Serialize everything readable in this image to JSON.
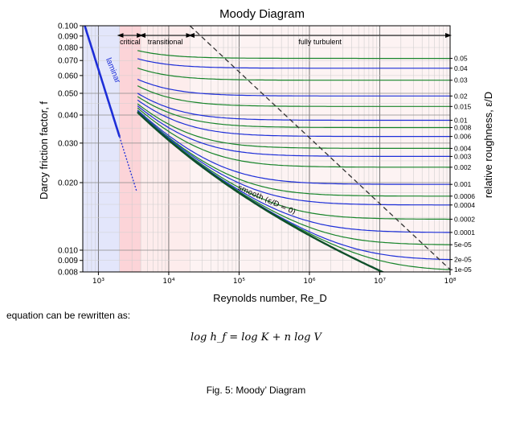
{
  "chart_data": {
    "type": "line",
    "title": "Moody Diagram",
    "xlabel": "Reynolds number, Re_D",
    "ylabel": "Darcy friction factor, f",
    "y2label": "relative roughness, ε/D",
    "x_scale": "log",
    "y_scale": "log",
    "xlim": [
      600,
      100000000
    ],
    "ylim": [
      0.008,
      0.1
    ],
    "x_ticks": [
      {
        "value": 1000,
        "label": "10³"
      },
      {
        "value": 10000,
        "label": "10⁴"
      },
      {
        "value": 100000,
        "label": "10⁵"
      },
      {
        "value": 1000000,
        "label": "10⁶"
      },
      {
        "value": 10000000,
        "label": "10⁷"
      },
      {
        "value": 100000000,
        "label": "10⁸"
      }
    ],
    "y_ticks": [
      {
        "value": 0.1,
        "label": "0.100"
      },
      {
        "value": 0.09,
        "label": "0.090"
      },
      {
        "value": 0.08,
        "label": "0.080"
      },
      {
        "value": 0.07,
        "label": "0.070"
      },
      {
        "value": 0.06,
        "label": "0.060"
      },
      {
        "value": 0.05,
        "label": "0.050"
      },
      {
        "value": 0.04,
        "label": "0.040"
      },
      {
        "value": 0.03,
        "label": "0.030"
      },
      {
        "value": 0.02,
        "label": "0.020"
      },
      {
        "value": 0.01,
        "label": "0.010"
      },
      {
        "value": 0.009,
        "label": "0.009"
      },
      {
        "value": 0.008,
        "label": "0.008"
      }
    ],
    "regions": [
      {
        "name": "laminar",
        "x": [
          600,
          2000
        ],
        "color": "#e3e6fb"
      },
      {
        "name": "critical",
        "x": [
          2000,
          4000
        ],
        "color": "#fcd4d8"
      },
      {
        "name": "transitional",
        "x": [
          4000,
          20000
        ],
        "color": "#fdecec"
      },
      {
        "name": "fully turbulent",
        "x": [
          20000,
          100000000
        ],
        "color": "#fdf3f3"
      }
    ],
    "region_labels": [
      "critical",
      "transitional",
      "fully turbulent"
    ],
    "laminar_label": "laminar",
    "smooth_label": "smooth (ε/D = 0)",
    "roughness_labels": [
      "0.05",
      "0.04",
      "0.03",
      "0.02",
      "0.015",
      "0.01",
      "0.008",
      "0.006",
      "0.004",
      "0.003",
      "0.002",
      "0.001",
      "0.0006",
      "0.0004",
      "0.0002",
      "0.0001",
      "5e-05",
      "2e-05",
      "1e-05"
    ],
    "roughness_values": [
      0.05,
      0.04,
      0.03,
      0.02,
      0.015,
      0.01,
      0.008,
      0.006,
      0.004,
      0.003,
      0.002,
      0.001,
      0.0006,
      0.0004,
      0.0002,
      0.0001,
      5e-05,
      2e-05,
      1e-05
    ],
    "series_colors": [
      "#17842a",
      "#1d2ed8"
    ],
    "laminar_color": "#1d2ed8",
    "smooth_color": "#0f4f2a",
    "dashed_boundary_color": "#333333"
  },
  "text": {
    "caption_intro": "equation can be rewritten as:",
    "equation": "log h_f = log K + n log V",
    "figure_caption": "Fig. 5: Moody’ Diagram"
  }
}
